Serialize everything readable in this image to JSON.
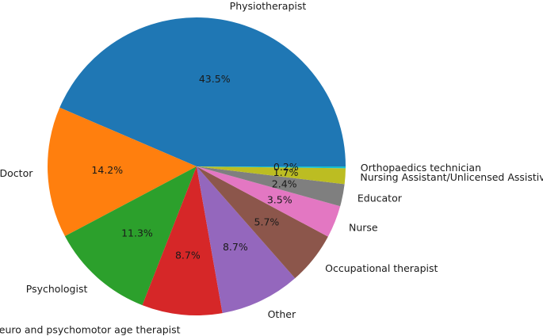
{
  "chart_data": {
    "type": "pie",
    "title": "",
    "start_angle_deg": 0,
    "direction": "counterclockwise",
    "label_format": "percent_one_decimal",
    "slices": [
      {
        "label": "Physiotherapist",
        "value": 43.5,
        "pct_label": "43.5%",
        "color": "#1f77b4"
      },
      {
        "label": "Doctor",
        "value": 14.2,
        "pct_label": "14.2%",
        "color": "#ff7f0e"
      },
      {
        "label": "Psychologist",
        "value": 11.3,
        "pct_label": "11.3%",
        "color": "#2ca02c"
      },
      {
        "label": "Neuro and psychomotor age therapist",
        "value": 8.7,
        "pct_label": "8.7%",
        "color": "#d62728"
      },
      {
        "label": "Other",
        "value": 8.7,
        "pct_label": "8.7%",
        "color": "#9467bd"
      },
      {
        "label": "Occupational therapist",
        "value": 5.7,
        "pct_label": "5.7%",
        "color": "#8c564b"
      },
      {
        "label": "Nurse",
        "value": 3.5,
        "pct_label": "3.5%",
        "color": "#e377c2"
      },
      {
        "label": "Educator",
        "value": 2.4,
        "pct_label": "2.4%",
        "color": "#7f7f7f"
      },
      {
        "label": "Nursing Assistant/Unlicensed Assistive",
        "value": 1.7,
        "pct_label": "1.7%",
        "color": "#bcbd22"
      },
      {
        "label": "Orthopaedics technician",
        "value": 0.2,
        "pct_label": "0.2%",
        "color": "#17becf"
      }
    ]
  }
}
